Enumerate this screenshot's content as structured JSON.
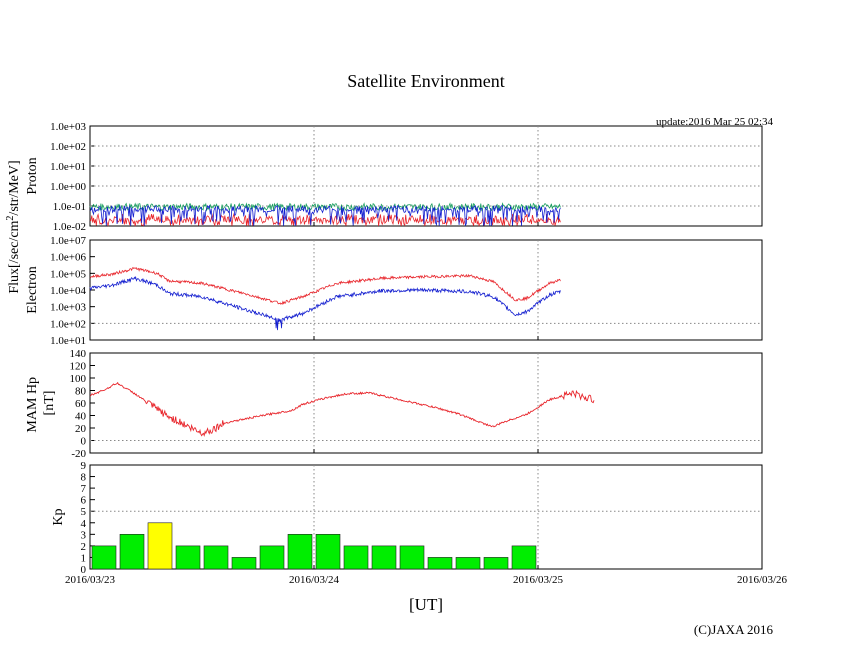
{
  "chart_data": {
    "type": "line",
    "title": "Satellite Environment",
    "update_label": "update:2016 Mar 25 02:34",
    "copyright": "(C)JAXA 2016",
    "xlabel": "[UT]",
    "flux_label": "Flux[/sec/cm",
    "flux_label_sup": "2",
    "flux_label_tail": "/str/MeV]",
    "x_range_days": [
      0,
      3
    ],
    "x_ticks": [
      {
        "day": 0,
        "label": "2016/03/23"
      },
      {
        "day": 1,
        "label": "2016/03/24"
      },
      {
        "day": 2,
        "label": "2016/03/25"
      },
      {
        "day": 3,
        "label": "2016/03/26"
      }
    ],
    "data_end_day": 2.1,
    "panels": {
      "proton": {
        "ylabel": "Proton",
        "scale": "log",
        "ylim_exp": [
          -2,
          3
        ],
        "tick_labels": [
          "1.0e+03",
          "1.0e+02",
          "1.0e+01",
          "1.0e+00",
          "1.0e-01",
          "1.0e-02"
        ],
        "series": [
          {
            "name": "red",
            "color": "#e8262c",
            "level": 0.02
          },
          {
            "name": "green",
            "color": "#18a060",
            "level": 0.09
          },
          {
            "name": "blue",
            "color": "#1520d0",
            "level": 0.07
          }
        ]
      },
      "electron": {
        "ylabel": "Electron",
        "scale": "log",
        "ylim_exp": [
          1,
          7
        ],
        "tick_labels": [
          "1.0e+07",
          "1.0e+06",
          "1.0e+05",
          "1.0e+04",
          "1.0e+03",
          "1.0e+02",
          "1.0e+01"
        ],
        "series": [
          {
            "name": "red",
            "color": "#e8262c",
            "points": [
              [
                0,
                4.8
              ],
              [
                0.1,
                4.95
              ],
              [
                0.2,
                5.3
              ],
              [
                0.3,
                5.0
              ],
              [
                0.35,
                4.55
              ],
              [
                0.5,
                4.4
              ],
              [
                0.7,
                3.75
              ],
              [
                0.85,
                3.2
              ],
              [
                0.95,
                3.6
              ],
              [
                1.1,
                4.4
              ],
              [
                1.3,
                4.7
              ],
              [
                1.5,
                4.8
              ],
              [
                1.7,
                4.85
              ],
              [
                1.8,
                4.5
              ],
              [
                1.9,
                3.4
              ],
              [
                1.95,
                3.5
              ],
              [
                2.05,
                4.4
              ],
              [
                2.1,
                4.6
              ]
            ]
          },
          {
            "name": "blue",
            "color": "#1520d0",
            "points": [
              [
                0,
                4.1
              ],
              [
                0.1,
                4.3
              ],
              [
                0.2,
                4.7
              ],
              [
                0.3,
                4.3
              ],
              [
                0.35,
                3.8
              ],
              [
                0.5,
                3.6
              ],
              [
                0.7,
                2.8
              ],
              [
                0.85,
                2.2
              ],
              [
                0.95,
                2.6
              ],
              [
                1.1,
                3.6
              ],
              [
                1.3,
                3.95
              ],
              [
                1.5,
                4.0
              ],
              [
                1.7,
                3.9
              ],
              [
                1.8,
                3.6
              ],
              [
                1.9,
                2.5
              ],
              [
                1.95,
                2.7
              ],
              [
                2.05,
                3.7
              ],
              [
                2.1,
                3.9
              ]
            ]
          }
        ]
      },
      "mam_hp": {
        "ylabel_lines": [
          "MAM Hp",
          "[nT]"
        ],
        "ylim": [
          -20,
          140
        ],
        "ticks": [
          140,
          120,
          100,
          80,
          60,
          40,
          20,
          0,
          -20
        ],
        "series": [
          {
            "name": "Hp",
            "color": "#e8262c",
            "points": [
              [
                0,
                72
              ],
              [
                0.07,
                82
              ],
              [
                0.12,
                92
              ],
              [
                0.2,
                75
              ],
              [
                0.28,
                55
              ],
              [
                0.35,
                38
              ],
              [
                0.4,
                30
              ],
              [
                0.45,
                20
              ],
              [
                0.5,
                12
              ],
              [
                0.55,
                18
              ],
              [
                0.6,
                28
              ],
              [
                0.7,
                35
              ],
              [
                0.8,
                42
              ],
              [
                0.9,
                48
              ],
              [
                0.95,
                58
              ],
              [
                1.05,
                68
              ],
              [
                1.15,
                75
              ],
              [
                1.25,
                76
              ],
              [
                1.35,
                68
              ],
              [
                1.45,
                60
              ],
              [
                1.55,
                52
              ],
              [
                1.65,
                42
              ],
              [
                1.75,
                28
              ],
              [
                1.8,
                22
              ],
              [
                1.85,
                30
              ],
              [
                1.95,
                42
              ],
              [
                2.05,
                65
              ],
              [
                2.15,
                76
              ],
              [
                2.2,
                70
              ],
              [
                2.25,
                65
              ]
            ]
          }
        ]
      },
      "kp": {
        "ylabel": "Kp",
        "ylim": [
          0,
          9
        ],
        "ticks": [
          9,
          8,
          7,
          6,
          5,
          4,
          3,
          2,
          1,
          0
        ],
        "threshold": 5,
        "bar_step_hours": 3,
        "values": [
          2,
          3,
          4,
          2,
          2,
          1,
          2,
          3,
          3,
          2,
          2,
          2,
          1,
          1,
          1,
          2
        ],
        "colors": {
          "normal": "#00ee00",
          "elevated": "#ffff00",
          "border": "#222222"
        }
      }
    }
  }
}
